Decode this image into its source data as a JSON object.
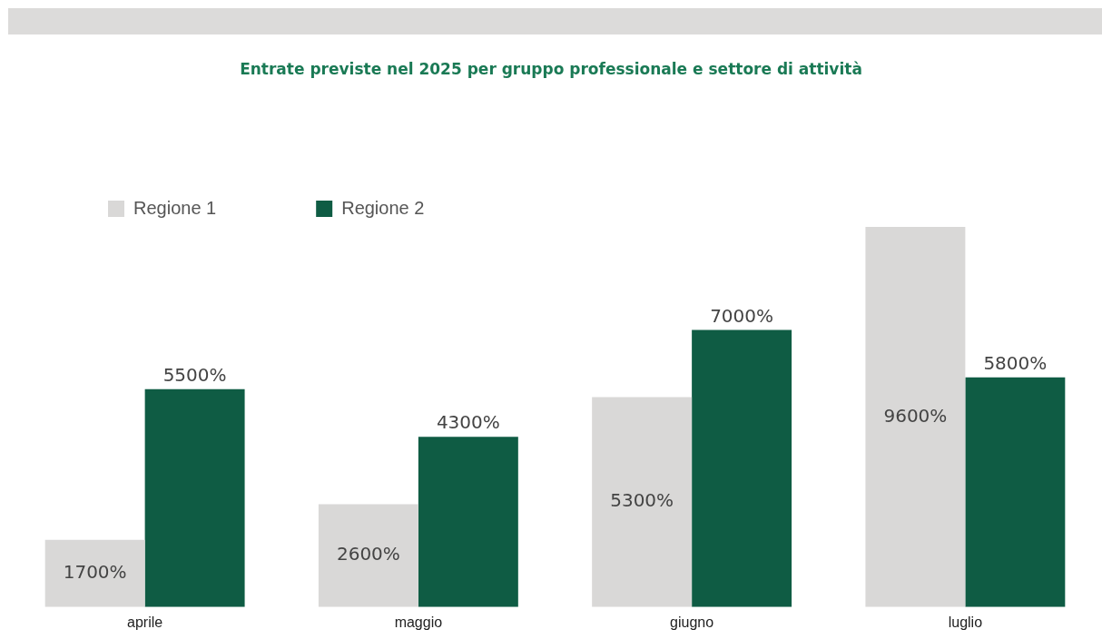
{
  "chart_data": {
    "type": "bar",
    "title": "Entrate previste nel 2025 per gruppo professionale e settore di attività",
    "categories": [
      "aprile",
      "maggio",
      "giugno",
      "luglio"
    ],
    "series": [
      {
        "name": "Regione 1",
        "color": "#d9d8d7",
        "values": [
          1700,
          2600,
          5300,
          9600
        ],
        "value_labels": [
          "1700%",
          "2600%",
          "5300%",
          "9600%"
        ]
      },
      {
        "name": "Regione 2",
        "color": "#0f5c44",
        "values": [
          5500,
          4300,
          7000,
          5800
        ],
        "value_labels": [
          "5500%",
          "4300%",
          "7000%",
          "5800%"
        ]
      }
    ],
    "legend": "top left",
    "grid": false
  }
}
